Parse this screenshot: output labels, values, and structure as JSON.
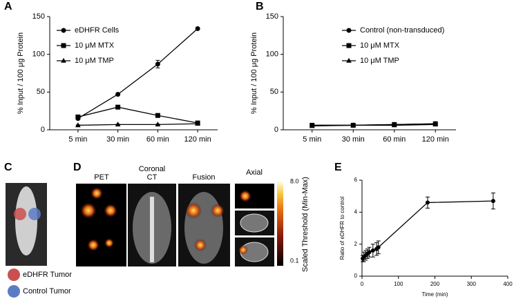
{
  "panels": [
    "A",
    "B",
    "C",
    "D",
    "E"
  ],
  "chart_data": [
    {
      "type": "line",
      "ylabel": "% Input / 100 μg Protein",
      "categories": [
        "5 min",
        "30 min",
        "60 min",
        "120 min"
      ],
      "ylim": [
        0,
        150
      ],
      "yticks": [
        0,
        50,
        100,
        150
      ],
      "legend": "upper left",
      "series": [
        {
          "name": "eDHFR Cells",
          "color": "#000000",
          "marker": "circle",
          "values": [
            15,
            47,
            87,
            134
          ],
          "errors": [
            1,
            1,
            5,
            1
          ]
        },
        {
          "name": "10 μM MTX",
          "color": "#000000",
          "marker": "square",
          "values": [
            17,
            30,
            19,
            9
          ],
          "errors": [
            1,
            1,
            1,
            1
          ]
        },
        {
          "name": "10 μM TMP",
          "color": "#000000",
          "marker": "triangle",
          "values": [
            6,
            7,
            7,
            8
          ],
          "errors": [
            0.5,
            0.5,
            0.5,
            0.5
          ]
        }
      ]
    },
    {
      "type": "line",
      "ylabel": "% Input / 100 μg Protein",
      "categories": [
        "5 min",
        "30 min",
        "60 min",
        "120 min"
      ],
      "ylim": [
        0,
        150
      ],
      "yticks": [
        0,
        50,
        100,
        150
      ],
      "legend": "upper right",
      "series": [
        {
          "name": "Control (non-transduced)",
          "color": "#000000",
          "marker": "circle",
          "values": [
            6,
            6,
            7,
            8
          ],
          "errors": [
            0.5,
            0.5,
            0.5,
            0.5
          ]
        },
        {
          "name": "10 μM MTX",
          "color": "#000000",
          "marker": "square",
          "values": [
            6,
            6,
            7,
            8
          ],
          "errors": [
            0.5,
            0.5,
            0.5,
            0.5
          ]
        },
        {
          "name": "10 μM TMP",
          "color": "#000000",
          "marker": "triangle",
          "values": [
            5,
            6,
            6,
            7
          ],
          "errors": [
            0.5,
            0.5,
            0.5,
            0.5
          ]
        }
      ]
    },
    {
      "type": "scatter",
      "xlabel": "Time (min)",
      "ylabel": "Ratio of eDHFR to control",
      "xlim": [
        0,
        400
      ],
      "xticks": [
        0,
        100,
        200,
        300,
        400
      ],
      "ylim": [
        0,
        6
      ],
      "yticks": [
        0,
        2,
        4,
        6
      ],
      "series": [
        {
          "color": "#000000",
          "marker": "circle",
          "x": [
            2,
            5,
            10,
            15,
            20,
            30,
            40,
            45,
            180,
            360
          ],
          "values": [
            1.1,
            1.2,
            1.3,
            1.4,
            1.5,
            1.6,
            1.7,
            1.8,
            4.6,
            4.7
          ],
          "errors": [
            0.2,
            0.3,
            0.3,
            0.3,
            0.3,
            0.4,
            0.4,
            0.4,
            0.35,
            0.5
          ]
        }
      ]
    }
  ],
  "imaging": {
    "legend": [
      {
        "name": "eDHFR Tumor",
        "color": "#c9504f"
      },
      {
        "name": "Control Tumor",
        "color": "#5b7cc4"
      }
    ],
    "labels": [
      "PET",
      "Coronal",
      "CT",
      "Fusion",
      "Axial"
    ],
    "colorbar": {
      "max": "8.0",
      "min": "0.1",
      "title": "Scaled Threshold (Min-Max)"
    }
  }
}
